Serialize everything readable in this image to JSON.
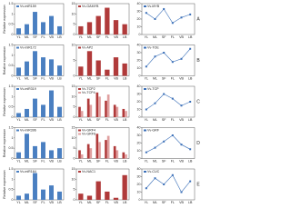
{
  "chart_data": [
    {
      "type": "bar",
      "ylabel": "Relative expression",
      "categories": [
        "YL",
        "ML",
        "SF",
        "FL",
        "VB",
        "LB"
      ],
      "series": [
        {
          "name": "Vv-miR159",
          "color": "#4a7fc1",
          "values": [
            0.3,
            0.5,
            1.1,
            0.6,
            0.9,
            0.4
          ]
        }
      ],
      "ylim": [
        0,
        1.5
      ],
      "yticks": [
        0,
        0.5,
        1,
        1.5
      ]
    },
    {
      "type": "bar",
      "categories": [
        "YL",
        "ML",
        "SF",
        "FL",
        "VB",
        "LB"
      ],
      "series": [
        {
          "name": "Vv-GAMYB",
          "color": "#b03a3a",
          "values": [
            4,
            6,
            9,
            13,
            7,
            5
          ]
        }
      ],
      "ylim": [
        0,
        15
      ],
      "yticks": [
        0,
        5,
        10,
        15
      ]
    },
    {
      "type": "line",
      "panel": "A",
      "categories": [
        "YL",
        "ML",
        "SF",
        "FL",
        "VB",
        "LB"
      ],
      "series": [
        {
          "name": "Vv-MYB",
          "color": "#3a6fb8",
          "values": [
            28,
            20,
            33,
            15,
            22,
            26
          ]
        }
      ],
      "ylim": [
        0,
        40
      ],
      "yticks": [
        0,
        10,
        20,
        30,
        40
      ]
    },
    {
      "type": "bar",
      "ylabel": "Relative expression",
      "categories": [
        "YL",
        "ML",
        "SF",
        "FL",
        "VB",
        "LB"
      ],
      "series": [
        {
          "name": "Vv-miR172",
          "color": "#4a7fc1",
          "values": [
            0.4,
            0.7,
            1.2,
            0.9,
            0.8,
            0.5
          ]
        }
      ],
      "ylim": [
        0,
        1.5
      ],
      "yticks": [
        0,
        0.5,
        1,
        1.5
      ]
    },
    {
      "type": "bar",
      "categories": [
        "YL",
        "ML",
        "SF",
        "FL",
        "VB",
        "LB"
      ],
      "series": [
        {
          "name": "Vv-AP2",
          "color": "#b03a3a",
          "values": [
            3,
            8,
            5,
            2,
            6,
            4
          ]
        }
      ],
      "ylim": [
        0,
        10
      ],
      "yticks": [
        0,
        5,
        10
      ]
    },
    {
      "type": "line",
      "panel": "B",
      "categories": [
        "YL",
        "ML",
        "SF",
        "FL",
        "VB",
        "LB"
      ],
      "series": [
        {
          "name": "Vv-TOE",
          "color": "#3a6fb8",
          "values": [
            12,
            25,
            30,
            18,
            22,
            35
          ]
        }
      ],
      "ylim": [
        0,
        40
      ],
      "yticks": [
        0,
        10,
        20,
        30,
        40
      ]
    },
    {
      "type": "bar",
      "ylabel": "Relative expression",
      "categories": [
        "YL",
        "ML",
        "SF",
        "FL",
        "VB",
        "LB"
      ],
      "series": [
        {
          "name": "Vv-miR319",
          "color": "#4a7fc1",
          "values": [
            0.2,
            0.4,
            0.9,
            0.6,
            1.3,
            0.5
          ]
        }
      ],
      "ylim": [
        0,
        1.5
      ],
      "yticks": [
        0,
        0.5,
        1,
        1.5
      ]
    },
    {
      "type": "bar",
      "categories": [
        "YL",
        "ML",
        "SF",
        "FL",
        "VB",
        "LB"
      ],
      "series": [
        {
          "name": "Vv-TCP2",
          "color": "#b03a3a",
          "values": [
            5,
            9,
            12,
            8,
            6,
            4
          ]
        },
        {
          "name": "Vv-TCP4",
          "color": "#e0a0a0",
          "values": [
            3,
            6,
            10,
            11,
            5,
            3
          ]
        }
      ],
      "ylim": [
        0,
        15
      ],
      "yticks": [
        0,
        5,
        10,
        15
      ]
    },
    {
      "type": "line",
      "panel": "C",
      "categories": [
        "YL",
        "ML",
        "SF",
        "FL",
        "VB",
        "LB"
      ],
      "series": [
        {
          "name": "Vv-TCP",
          "color": "#3a6fb8",
          "values": [
            10,
            18,
            30,
            24,
            15,
            20
          ]
        }
      ],
      "ylim": [
        0,
        40
      ],
      "yticks": [
        0,
        10,
        20,
        30,
        40
      ]
    },
    {
      "type": "bar",
      "ylabel": "Relative expression",
      "categories": [
        "YL",
        "ML",
        "SF",
        "FL",
        "VB",
        "LB"
      ],
      "series": [
        {
          "name": "Vv-miR396",
          "color": "#4a7fc1",
          "values": [
            0.3,
            1.2,
            0.6,
            0.8,
            0.4,
            0.5
          ]
        }
      ],
      "ylim": [
        0,
        1.5
      ],
      "yticks": [
        0,
        0.5,
        1,
        1.5
      ]
    },
    {
      "type": "bar",
      "categories": [
        "YL",
        "ML",
        "SF",
        "FL",
        "VB",
        "LB"
      ],
      "series": [
        {
          "name": "Vv-GRF4",
          "color": "#b03a3a",
          "values": [
            4,
            7,
            12,
            9,
            6,
            3
          ]
        },
        {
          "name": "Vv-GRF6",
          "color": "#e0a0a0",
          "values": [
            2,
            5,
            8,
            11,
            4,
            2
          ]
        }
      ],
      "ylim": [
        0,
        15
      ],
      "yticks": [
        0,
        5,
        10,
        15
      ]
    },
    {
      "type": "line",
      "panel": "D",
      "categories": [
        "YL",
        "ML",
        "SF",
        "FL",
        "VB",
        "LB"
      ],
      "series": [
        {
          "name": "Vv-GRF",
          "color": "#3a6fb8",
          "values": [
            8,
            14,
            22,
            30,
            18,
            12
          ]
        }
      ],
      "ylim": [
        0,
        40
      ],
      "yticks": [
        0,
        10,
        20,
        30,
        40
      ]
    },
    {
      "type": "bar",
      "ylabel": "Relative expression",
      "categories": [
        "YL",
        "ML",
        "SF",
        "FL",
        "VB",
        "LB"
      ],
      "series": [
        {
          "name": "Vv-miR164",
          "color": "#4a7fc1",
          "values": [
            0.2,
            0.3,
            1.3,
            0.5,
            0.7,
            0.4
          ]
        }
      ],
      "ylim": [
        0,
        1.5
      ],
      "yticks": [
        0,
        0.5,
        1,
        1.5
      ]
    },
    {
      "type": "bar",
      "categories": [
        "YL",
        "ML",
        "SF",
        "FL",
        "VB",
        "LB"
      ],
      "series": [
        {
          "name": "Vv-NAC1",
          "color": "#b03a3a",
          "values": [
            3,
            2,
            9,
            4,
            1,
            12
          ]
        }
      ],
      "ylim": [
        0,
        15
      ],
      "yticks": [
        0,
        5,
        10,
        15
      ]
    },
    {
      "type": "line",
      "panel": "E",
      "categories": [
        "YL",
        "ML",
        "SF",
        "FL",
        "VB",
        "LB"
      ],
      "series": [
        {
          "name": "Vv-CUC",
          "color": "#3a6fb8",
          "values": [
            15,
            28,
            20,
            32,
            10,
            24
          ]
        }
      ],
      "ylim": [
        0,
        40
      ],
      "yticks": [
        0,
        10,
        20,
        30,
        40
      ]
    }
  ]
}
